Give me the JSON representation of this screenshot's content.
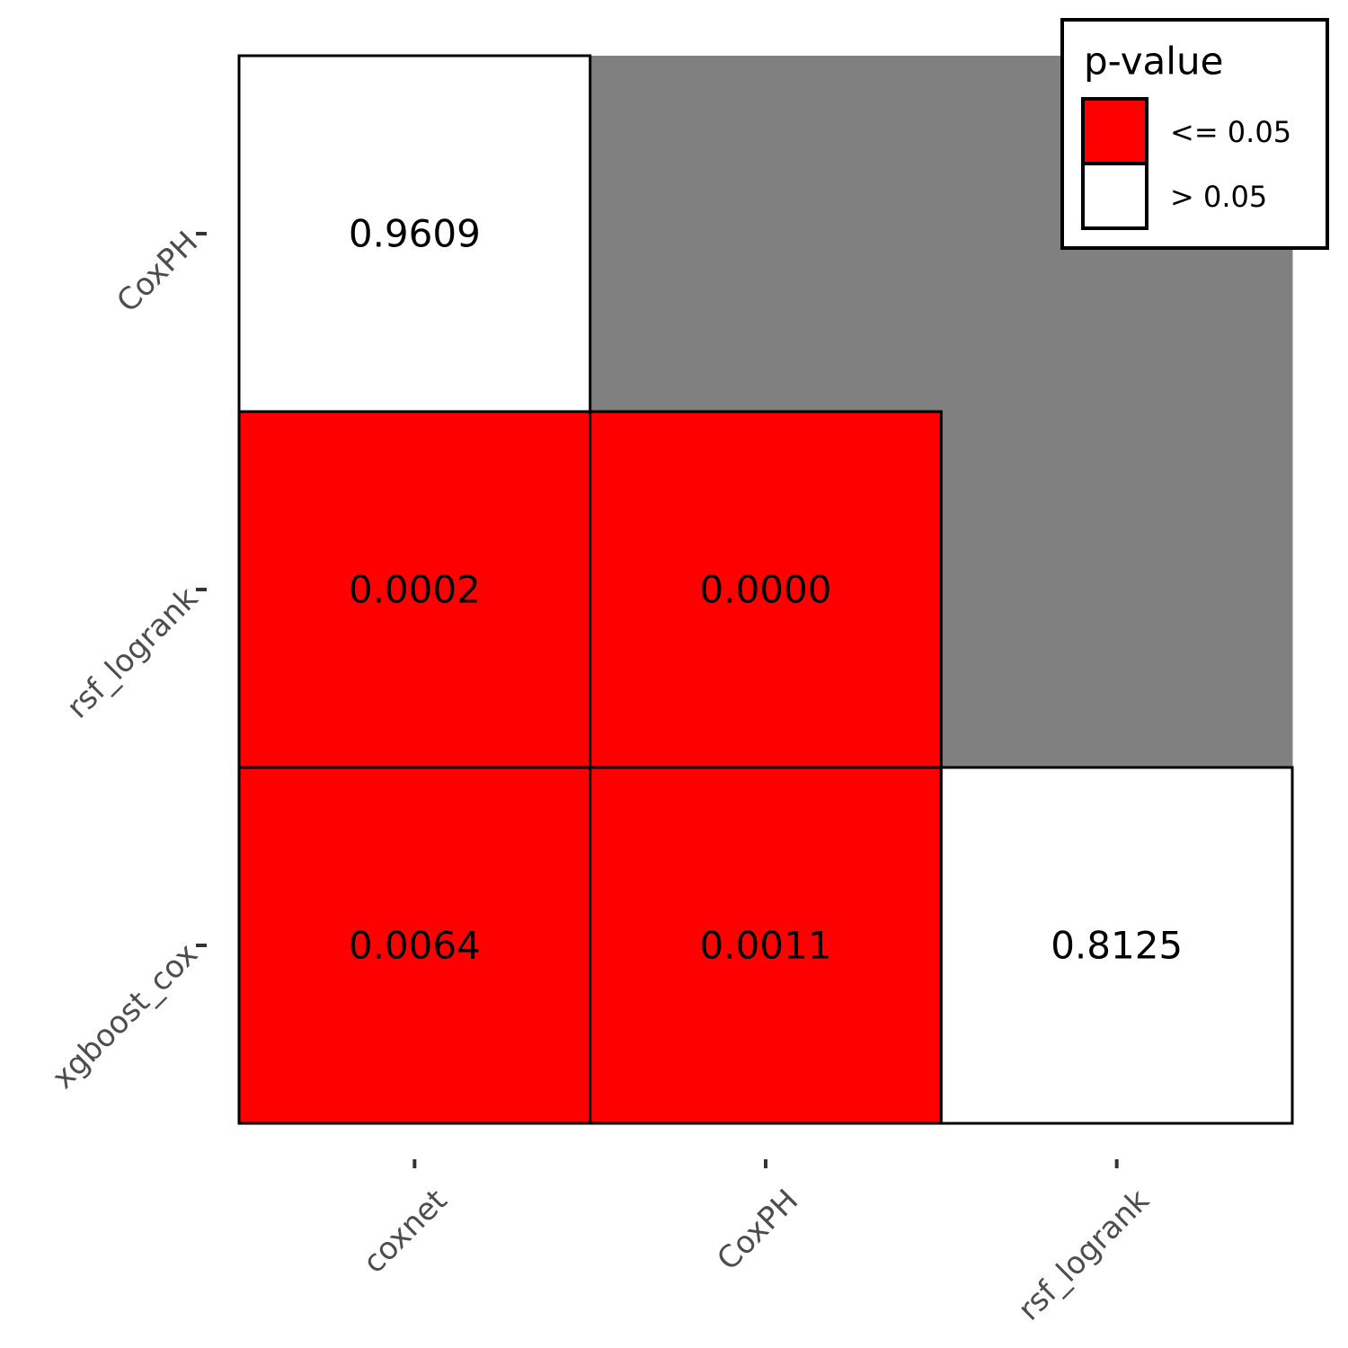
{
  "chart_data": {
    "type": "heatmap",
    "x_categories": [
      "coxnet",
      "CoxPH",
      "rsf_logrank"
    ],
    "y_categories": [
      "CoxPH",
      "rsf_logrank",
      "xgboost_cox"
    ],
    "cells": [
      {
        "x": "coxnet",
        "y": "CoxPH",
        "value": "0.9609",
        "class": "> 0.05"
      },
      {
        "x": "coxnet",
        "y": "rsf_logrank",
        "value": "0.0002",
        "class": "<= 0.05"
      },
      {
        "x": "CoxPH",
        "y": "rsf_logrank",
        "value": "0.0000",
        "class": "<= 0.05"
      },
      {
        "x": "coxnet",
        "y": "xgboost_cox",
        "value": "0.0064",
        "class": "<= 0.05"
      },
      {
        "x": "CoxPH",
        "y": "xgboost_cox",
        "value": "0.0011",
        "class": "<= 0.05"
      },
      {
        "x": "rsf_logrank",
        "y": "xgboost_cox",
        "value": "0.8125",
        "class": "> 0.05"
      }
    ],
    "legend": {
      "title": "p-value",
      "position": "top-right",
      "entries": [
        {
          "label": "<= 0.05",
          "color": "#ff0000"
        },
        {
          "label": "> 0.05",
          "color": "#ffffff"
        }
      ]
    },
    "colors": {
      "significant": "#ff0000",
      "not_significant": "#ffffff",
      "empty": "#808080"
    }
  }
}
